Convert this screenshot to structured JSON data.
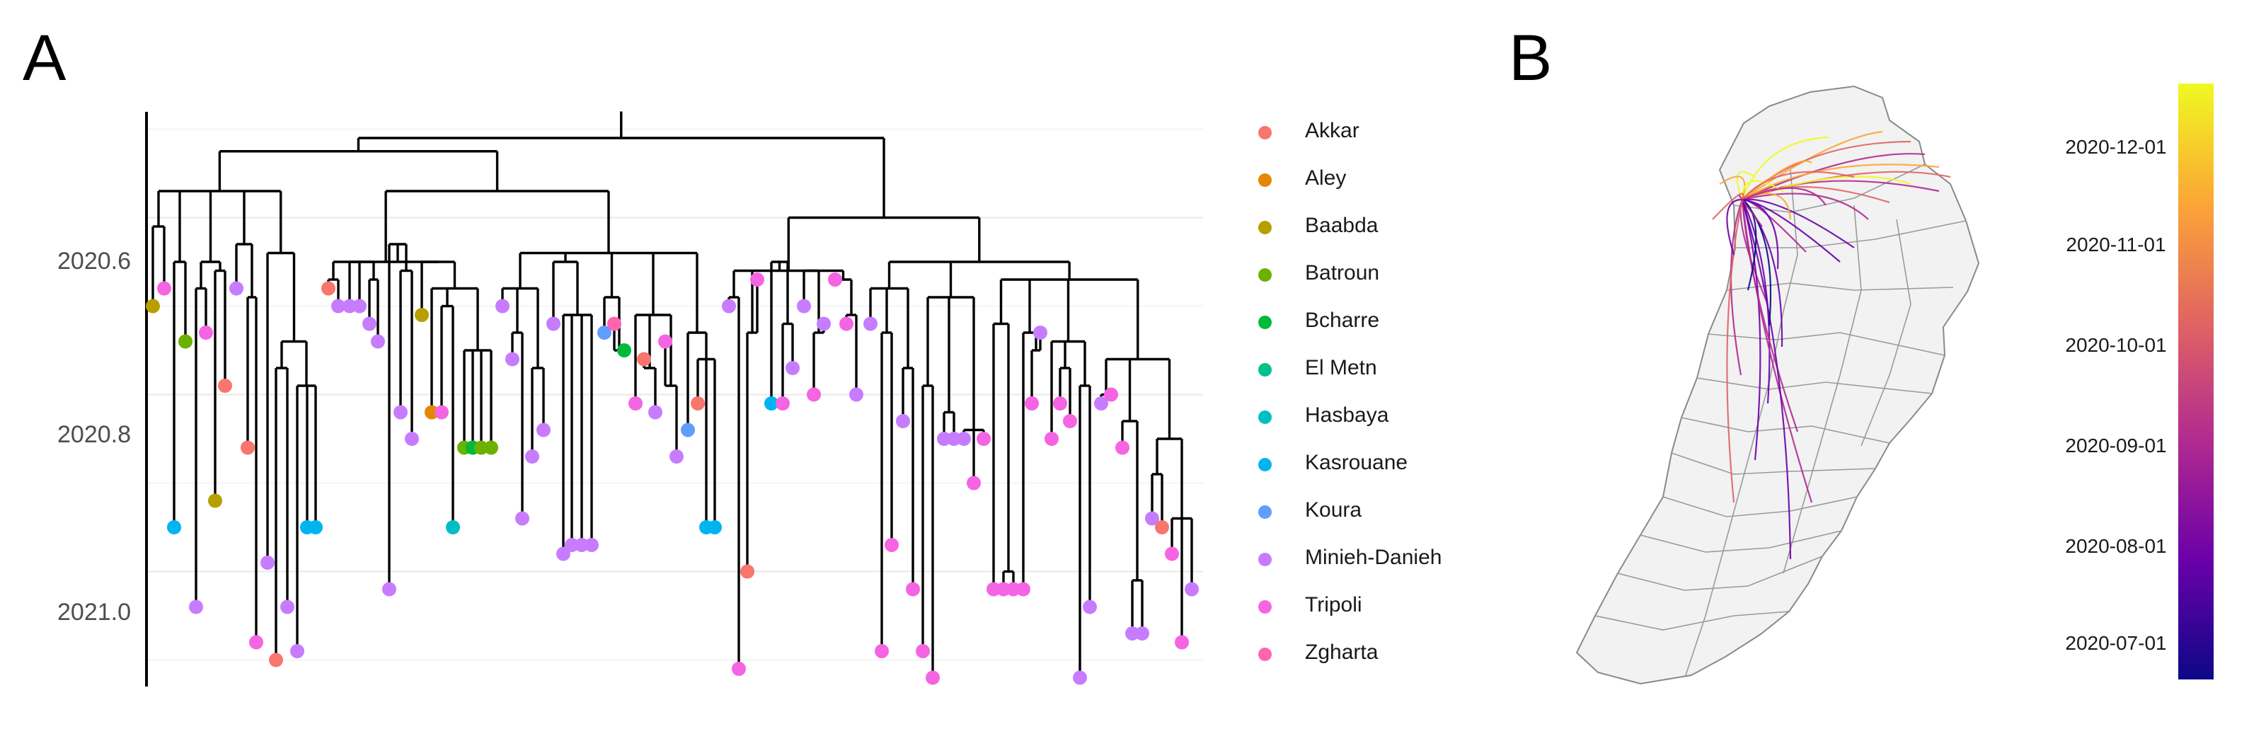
{
  "panels": {
    "a_label": "A",
    "b_label": "B"
  },
  "tree": {
    "y_ticks": [
      "2020.6",
      "2020.8",
      "2021.0"
    ],
    "y_tick_values": [
      2020.6,
      2020.8,
      2021.0
    ],
    "branch_color": "#000000"
  },
  "legend": {
    "entries": [
      {
        "name": "Akkar",
        "color": "#F8766D"
      },
      {
        "name": "Aley",
        "color": "#E58700"
      },
      {
        "name": "Baabda",
        "color": "#B79F00"
      },
      {
        "name": "Batroun",
        "color": "#6BB100"
      },
      {
        "name": "Bcharre",
        "color": "#00BA38"
      },
      {
        "name": "El Metn",
        "color": "#00C08B"
      },
      {
        "name": "Hasbaya",
        "color": "#00BFC4"
      },
      {
        "name": "Kasrouane",
        "color": "#00B4F0"
      },
      {
        "name": "Koura",
        "color": "#619CFF"
      },
      {
        "name": "Minieh-Danieh",
        "color": "#C77CFF"
      },
      {
        "name": "Tripoli",
        "color": "#F564E3"
      },
      {
        "name": "Zgharta",
        "color": "#FF64B0"
      }
    ]
  },
  "colorbar": {
    "labels": [
      "2020-12-01",
      "2020-11-01",
      "2020-10-01",
      "2020-09-01",
      "2020-08-01",
      "2020-07-01"
    ],
    "gradient": [
      "#0D0887",
      "#6A00A8",
      "#B12A90",
      "#E16462",
      "#FCA636",
      "#F0F921"
    ]
  },
  "map": {
    "fill": "#F2F2F2",
    "border": "#8A8A8A"
  }
}
